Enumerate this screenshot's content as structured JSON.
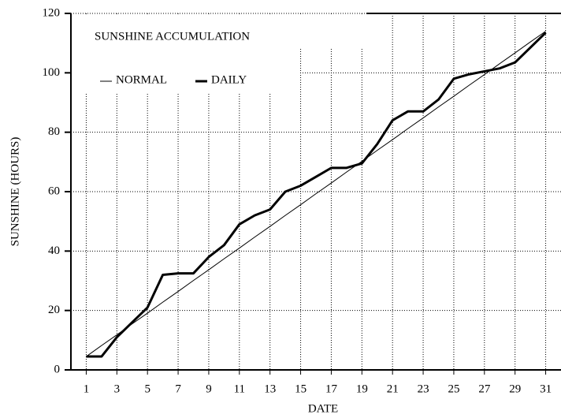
{
  "chart_data": {
    "type": "line",
    "title": "SUNSHINE ACCUMULATION",
    "x_label": "DATE",
    "y_label": "SUNSHINE (HOURS)",
    "x": [
      1,
      2,
      3,
      4,
      5,
      6,
      7,
      8,
      9,
      10,
      11,
      12,
      13,
      14,
      15,
      16,
      17,
      18,
      19,
      20,
      21,
      22,
      23,
      24,
      25,
      26,
      27,
      28,
      29,
      30,
      31
    ],
    "series": [
      {
        "name": "NORMAL",
        "color": "#000000",
        "width": 1,
        "values": [
          4.5,
          8.2,
          11.8,
          15.5,
          19.1,
          22.8,
          26.4,
          30.1,
          33.7,
          37.4,
          41,
          44.7,
          48.3,
          52,
          55.6,
          59.3,
          62.9,
          66.6,
          70.2,
          73.9,
          77.5,
          81.2,
          84.8,
          88.5,
          92.1,
          95.8,
          99.4,
          103.1,
          106.7,
          110.4,
          114
        ]
      },
      {
        "name": "DAILY",
        "color": "#000000",
        "width": 3,
        "values": [
          4.5,
          4.5,
          11,
          16,
          21,
          32,
          32.5,
          32.5,
          38,
          42,
          49,
          52,
          54,
          60,
          62,
          65,
          68,
          68,
          69.5,
          76,
          84,
          87,
          87,
          91,
          98,
          99.5,
          100.5,
          101.5,
          103.5,
          108.5,
          113.5
        ]
      }
    ],
    "xlim": [
      0,
      32
    ],
    "xticks": [
      1,
      3,
      5,
      7,
      9,
      11,
      13,
      15,
      17,
      19,
      21,
      23,
      25,
      27,
      29,
      31
    ],
    "ylim": [
      0,
      120
    ],
    "yticks": [
      0,
      20,
      40,
      60,
      80,
      100,
      120
    ],
    "grid": true
  }
}
